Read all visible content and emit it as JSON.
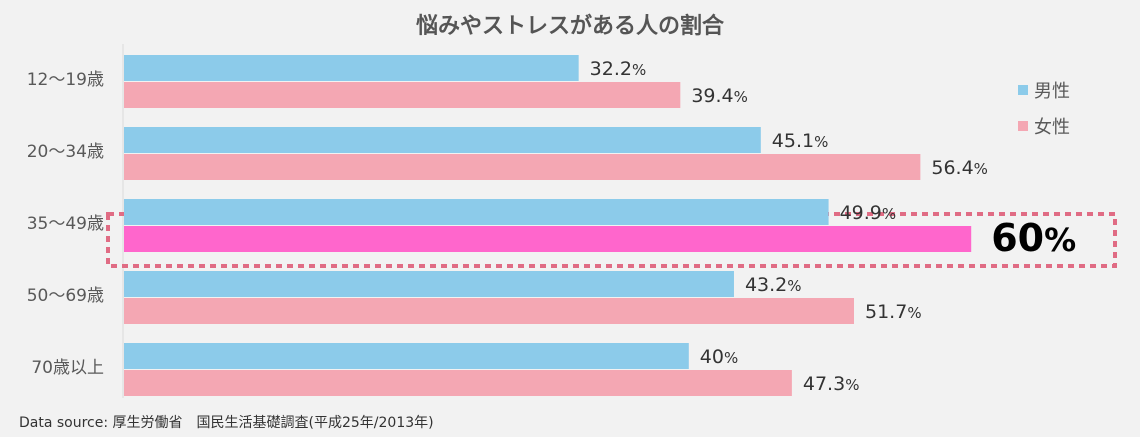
{
  "chart_data": {
    "type": "bar",
    "orientation": "horizontal",
    "title": "悩みやストレスがある人の割合",
    "categories": [
      "12～19歳",
      "20～34歳",
      "35～49歳",
      "50～69歳",
      "70歳以上"
    ],
    "series": [
      {
        "name": "男性",
        "color": "#8ccbea",
        "values": [
          32.2,
          45.1,
          49.9,
          43.2,
          40
        ],
        "labels": [
          "32.2",
          "45.1",
          "49.9",
          "43.2",
          "40"
        ]
      },
      {
        "name": "女性",
        "color": "#f4a7b3",
        "values": [
          39.4,
          56.4,
          60,
          51.7,
          47.3
        ],
        "labels": [
          "39.4",
          "56.4",
          "60",
          "51.7",
          "47.3"
        ]
      }
    ],
    "unit": "%",
    "xlim": [
      0,
      100
    ],
    "highlight": {
      "category_index": 2,
      "series_index": 1,
      "color": "#ff66cc",
      "border_color": "#e06c84"
    },
    "legend_position": "right"
  },
  "source": "Data source: 厚生労働省　国民生活基礎調査(平成25年/2013年)"
}
